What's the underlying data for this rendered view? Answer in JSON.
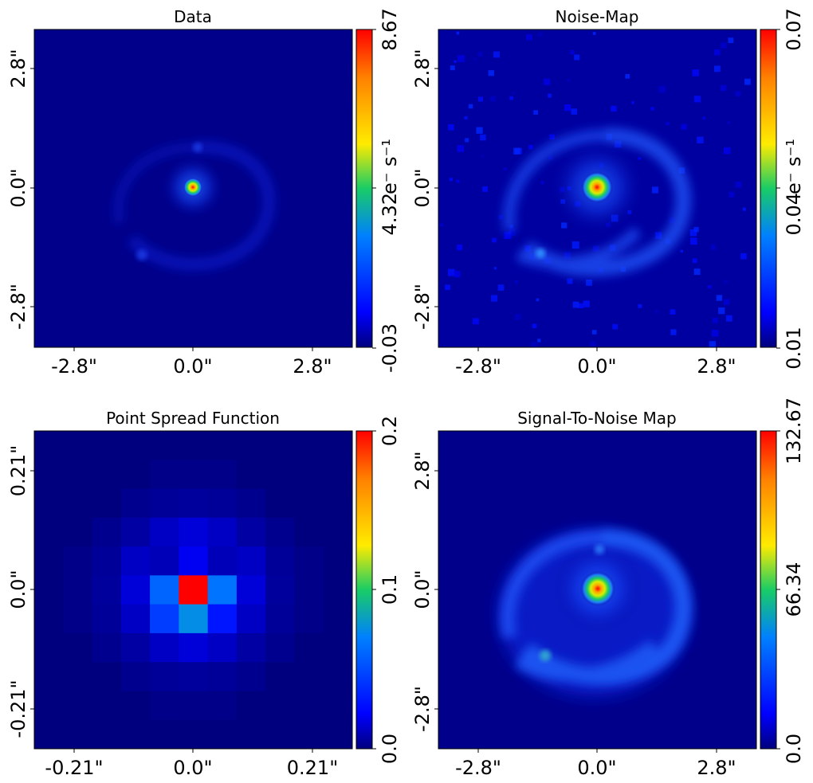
{
  "colors": {
    "jet_stops": [
      "#00007f",
      "#0000ff",
      "#0080ff",
      "#19cc66",
      "#ffeb00",
      "#ff8000",
      "#ff0000"
    ]
  },
  "chart_data": [
    {
      "type": "heatmap",
      "title": "Data",
      "xticks": [
        "-2.8\"",
        "0.0\"",
        "2.8\""
      ],
      "yticks": [
        "-2.8\"",
        "0.0\"",
        "2.8\""
      ],
      "xlim": [
        -3.75,
        3.75
      ],
      "ylim": [
        -3.75,
        3.75
      ],
      "colorbar": {
        "ticks": [
          "-0.03",
          "4.32",
          "8.67"
        ],
        "unit": "e⁻ s⁻¹",
        "range": [
          -0.03,
          8.67
        ]
      },
      "image": "spiral source: bright compact core at center, faint spiral arms"
    },
    {
      "type": "heatmap",
      "title": "Noise-Map",
      "xticks": [
        "-2.8\"",
        "0.0\"",
        "2.8\""
      ],
      "yticks": [
        "-2.8\"",
        "0.0\"",
        "2.8\""
      ],
      "xlim": [
        -3.75,
        3.75
      ],
      "ylim": [
        -3.75,
        3.75
      ],
      "colorbar": {
        "ticks": [
          "0.01",
          "0.04",
          "0.07"
        ],
        "unit": "e⁻ s⁻¹",
        "range": [
          0.01,
          0.07
        ]
      },
      "image": "noise: bright core, visible spiral arms, speckled background"
    },
    {
      "type": "heatmap",
      "title": "Point Spread Function",
      "xticks": [
        "-0.21\"",
        "0.0\"",
        "0.21\""
      ],
      "yticks": [
        "-0.21\"",
        "0.0\"",
        "0.21\""
      ],
      "xlim": [
        -0.28,
        0.28
      ],
      "ylim": [
        -0.28,
        0.28
      ],
      "colorbar": {
        "ticks": [
          "0.0",
          "0.1",
          "0.2"
        ],
        "unit": "",
        "range": [
          0.0,
          0.2
        ]
      },
      "psf_grid_center_block": [
        [
          0.01,
          0.02,
          0.01
        ],
        [
          0.06,
          0.2,
          0.065
        ],
        [
          0.045,
          0.075,
          0.03
        ]
      ]
    },
    {
      "type": "heatmap",
      "title": "Signal-To-Noise Map",
      "xticks": [
        "-2.8\"",
        "0.0\"",
        "2.8\""
      ],
      "yticks": [
        "-2.8\"",
        "0.0\"",
        "2.8\""
      ],
      "xlim": [
        -3.75,
        3.75
      ],
      "ylim": [
        -3.75,
        3.75
      ],
      "colorbar": {
        "ticks": [
          "0.0",
          "66.34",
          "132.67"
        ],
        "unit": "",
        "range": [
          0.0,
          132.67
        ]
      },
      "image": "S/N: bright core, well-defined spiral arms, dark background"
    }
  ]
}
